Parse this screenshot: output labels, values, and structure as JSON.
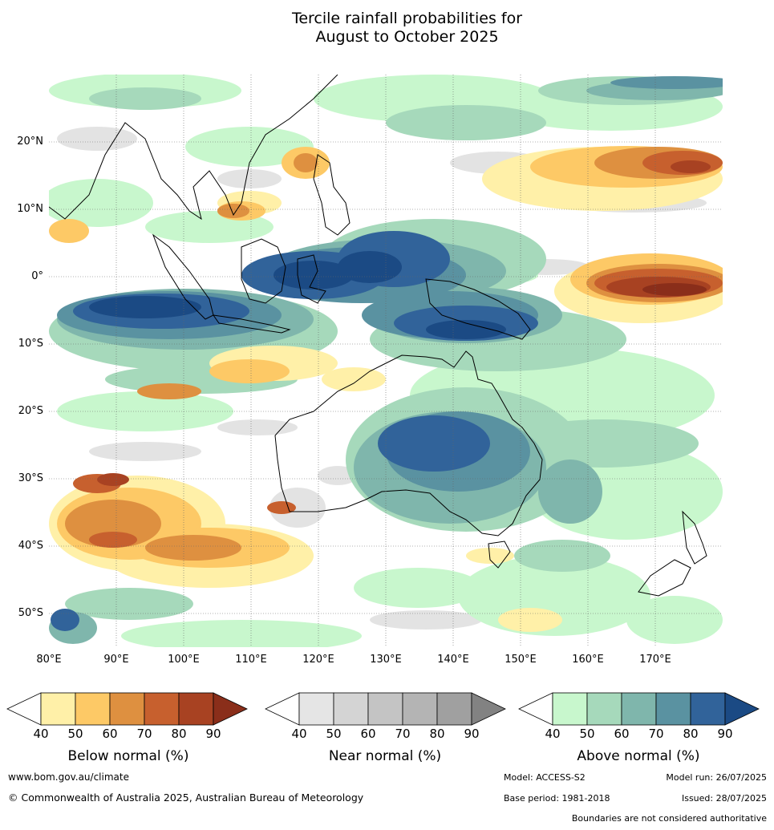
{
  "title": {
    "line1": "Tercile rainfall probabilities for",
    "line2": "August to October 2025"
  },
  "map": {
    "lat_labels": [
      "20°N",
      "10°N",
      "0°",
      "10°S",
      "20°S",
      "30°S",
      "40°S",
      "50°S"
    ],
    "lon_labels": [
      "80°E",
      "90°E",
      "100°E",
      "110°E",
      "120°E",
      "130°E",
      "140°E",
      "150°E",
      "160°E",
      "170°E"
    ],
    "lon_range": [
      80,
      180
    ],
    "lat_range": [
      -55,
      30
    ],
    "colors": {
      "below": [
        "#fff0a8",
        "#fdc966",
        "#de9040",
        "#c7602e",
        "#a84222",
        "#8a2e1a"
      ],
      "near": [
        "#e5e5e5",
        "#d4d4d4",
        "#c4c4c4",
        "#b4b4b4",
        "#a0a0a0",
        "#828282"
      ],
      "above": [
        "#c8f7cd",
        "#a6d9bb",
        "#7fb6ac",
        "#5a92a1",
        "#31639a",
        "#1b4a84"
      ]
    }
  },
  "legend": {
    "tick_labels": [
      "40",
      "50",
      "60",
      "70",
      "80",
      "90"
    ],
    "below_title": "Below normal (%)",
    "near_title": "Near normal (%)",
    "above_title": "Above normal (%)"
  },
  "footer": {
    "website": "www.bom.gov.au/climate",
    "copyright": "© Commonwealth of Australia 2025, Australian Bureau of Meteorology",
    "model": "Model: ACCESS-S2",
    "model_run": "Model run: 26/07/2025",
    "base_period": "Base period: 1981-2018",
    "issued": "Issued: 28/07/2025",
    "disclaimer": "Boundaries are not considered authoritative"
  }
}
